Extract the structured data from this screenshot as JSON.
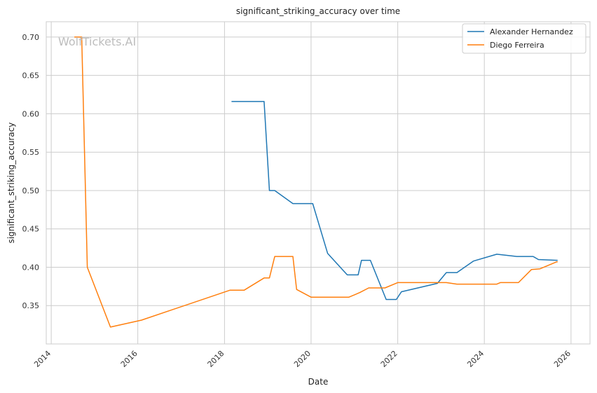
{
  "chart_data": {
    "type": "line",
    "title": "significant_striking_accuracy over time",
    "xlabel": "Date",
    "ylabel": "significant_striking_accuracy",
    "watermark": "WolfTickets.AI",
    "x_ticks": [
      "2014",
      "2016",
      "2018",
      "2020",
      "2022",
      "2024",
      "2026"
    ],
    "y_ticks": [
      "0.35",
      "0.40",
      "0.45",
      "0.50",
      "0.55",
      "0.60",
      "0.65",
      "0.70"
    ],
    "xlim": [
      "2013-11-20",
      "2026-06-10"
    ],
    "ylim": [
      0.3,
      0.72
    ],
    "grid": true,
    "legend_position": "top-right",
    "series": [
      {
        "name": "Alexander Hernandez",
        "color": "#1f77b4",
        "points": [
          [
            "2018-03-01",
            0.616
          ],
          [
            "2018-12-01",
            0.616
          ],
          [
            "2019-01-15",
            0.5
          ],
          [
            "2019-03-01",
            0.5
          ],
          [
            "2019-08-01",
            0.483
          ],
          [
            "2020-01-15",
            0.483
          ],
          [
            "2020-05-20",
            0.418
          ],
          [
            "2020-11-01",
            0.39
          ],
          [
            "2021-02-01",
            0.39
          ],
          [
            "2021-03-01",
            0.409
          ],
          [
            "2021-05-15",
            0.409
          ],
          [
            "2021-09-25",
            0.358
          ],
          [
            "2021-12-20",
            0.358
          ],
          [
            "2022-02-01",
            0.368
          ],
          [
            "2022-12-01",
            0.379
          ],
          [
            "2023-02-15",
            0.393
          ],
          [
            "2023-05-15",
            0.393
          ],
          [
            "2023-10-01",
            0.408
          ],
          [
            "2024-04-15",
            0.417
          ],
          [
            "2024-10-01",
            0.414
          ],
          [
            "2025-02-15",
            0.414
          ],
          [
            "2025-04-01",
            0.41
          ],
          [
            "2025-09-10",
            0.409
          ]
        ]
      },
      {
        "name": "Diego Ferreira",
        "color": "#ff7f0e",
        "points": [
          [
            "2014-07-15",
            0.7
          ],
          [
            "2014-09-15",
            0.7
          ],
          [
            "2014-11-01",
            0.4
          ],
          [
            "2015-05-15",
            0.322
          ],
          [
            "2016-02-01",
            0.331
          ],
          [
            "2018-02-15",
            0.37
          ],
          [
            "2018-06-15",
            0.37
          ],
          [
            "2018-12-01",
            0.386
          ],
          [
            "2019-01-15",
            0.386
          ],
          [
            "2019-03-01",
            0.414
          ],
          [
            "2019-08-01",
            0.414
          ],
          [
            "2019-09-01",
            0.371
          ],
          [
            "2020-01-01",
            0.361
          ],
          [
            "2020-11-15",
            0.361
          ],
          [
            "2021-02-15",
            0.367
          ],
          [
            "2021-05-01",
            0.373
          ],
          [
            "2021-09-15",
            0.373
          ],
          [
            "2022-01-01",
            0.38
          ],
          [
            "2023-02-15",
            0.38
          ],
          [
            "2023-05-15",
            0.378
          ],
          [
            "2024-04-15",
            0.378
          ],
          [
            "2024-05-15",
            0.38
          ],
          [
            "2024-10-15",
            0.38
          ],
          [
            "2025-02-01",
            0.397
          ],
          [
            "2025-04-15",
            0.398
          ],
          [
            "2025-09-01",
            0.407
          ],
          [
            "2025-09-10",
            0.407
          ]
        ]
      }
    ]
  }
}
